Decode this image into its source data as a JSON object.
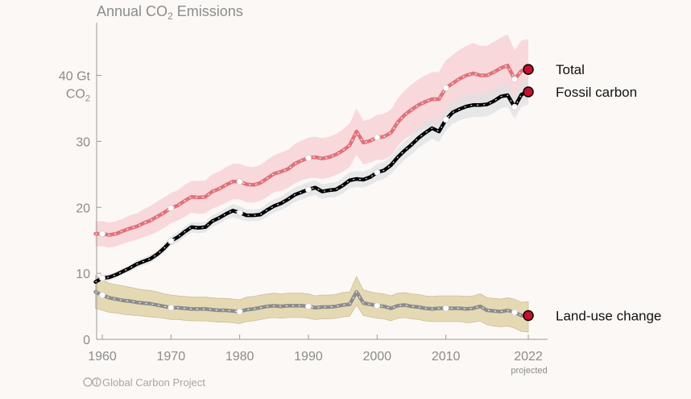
{
  "page": {
    "title": "Annual CO2 Emissions",
    "credit": "Global Carbon Project",
    "credit_icon": "creative-commons-icon"
  },
  "chart_data": {
    "type": "line",
    "title": "Annual CO₂ Emissions",
    "title_prefix": "Annual CO",
    "title_subscript": "2",
    "title_suffix": " Emissions",
    "ylabel_line1": "40 Gt",
    "ylabel_line2_prefix": "CO",
    "ylabel_line2_subscript": "2",
    "xlabel": "",
    "xlim": [
      1959,
      2023
    ],
    "ylim": [
      0,
      48
    ],
    "x_ticks": [
      1960,
      1970,
      1980,
      1990,
      2000,
      2010,
      2022
    ],
    "x_tick_labels": [
      "1960",
      "1970",
      "1980",
      "1990",
      "2000",
      "2010",
      "2022"
    ],
    "x_tick_note": "projected",
    "y_ticks": [
      0,
      10,
      20,
      30
    ],
    "y_tick_labels": [
      "0",
      "10",
      "20",
      "30"
    ],
    "years": [
      1959,
      1960,
      1961,
      1962,
      1963,
      1964,
      1965,
      1966,
      1967,
      1968,
      1969,
      1970,
      1971,
      1972,
      1973,
      1974,
      1975,
      1976,
      1977,
      1978,
      1979,
      1980,
      1981,
      1982,
      1983,
      1984,
      1985,
      1986,
      1987,
      1988,
      1989,
      1990,
      1991,
      1992,
      1993,
      1994,
      1995,
      1996,
      1997,
      1998,
      1999,
      2000,
      2001,
      2002,
      2003,
      2004,
      2005,
      2006,
      2007,
      2008,
      2009,
      2010,
      2011,
      2012,
      2013,
      2014,
      2015,
      2016,
      2017,
      2018,
      2019,
      2020,
      2021,
      2022
    ],
    "series": [
      {
        "name": "Total",
        "color": "#e0727c",
        "band_color": "#f7cdd0",
        "endpoint_color": "#c8102e",
        "values": [
          16.0,
          16.0,
          15.8,
          16.0,
          16.4,
          16.8,
          17.1,
          17.6,
          18.0,
          18.6,
          19.2,
          19.9,
          20.3,
          21.0,
          21.6,
          21.5,
          21.6,
          22.4,
          22.8,
          23.4,
          23.9,
          23.9,
          23.5,
          23.4,
          23.7,
          24.4,
          25.1,
          25.4,
          25.8,
          26.6,
          27.1,
          27.5,
          27.6,
          27.4,
          27.6,
          28.0,
          28.6,
          29.4,
          31.5,
          29.8,
          30.1,
          30.6,
          30.7,
          31.3,
          32.9,
          34.0,
          34.8,
          35.5,
          36.0,
          36.4,
          36.4,
          38.1,
          38.8,
          39.5,
          40.0,
          40.3,
          40.0,
          40.0,
          40.5,
          41.1,
          41.5,
          39.4,
          40.7,
          40.9
        ],
        "band_lo": [
          14.1,
          14.1,
          13.9,
          14.1,
          14.5,
          14.8,
          15.1,
          15.5,
          15.8,
          16.3,
          16.9,
          17.6,
          18.0,
          18.6,
          19.2,
          19.0,
          19.1,
          19.8,
          20.2,
          20.7,
          21.2,
          21.2,
          20.8,
          20.7,
          21.0,
          21.6,
          22.3,
          22.5,
          22.9,
          23.6,
          24.1,
          24.4,
          24.5,
          24.3,
          24.5,
          24.9,
          25.4,
          26.1,
          28.0,
          26.5,
          26.8,
          27.2,
          27.2,
          27.8,
          29.3,
          30.3,
          31.0,
          31.6,
          32.0,
          32.3,
          32.3,
          33.9,
          34.5,
          35.1,
          35.5,
          35.7,
          35.5,
          35.5,
          35.9,
          36.5,
          36.8,
          35.0,
          36.1,
          36.3
        ],
        "band_hi": [
          17.9,
          17.9,
          17.7,
          17.9,
          18.3,
          18.8,
          19.1,
          19.7,
          20.2,
          20.9,
          21.5,
          22.2,
          22.6,
          23.4,
          24.0,
          24.0,
          24.1,
          25.0,
          25.4,
          26.1,
          26.6,
          26.6,
          26.2,
          26.1,
          26.4,
          27.2,
          27.9,
          28.3,
          28.7,
          29.6,
          30.1,
          30.6,
          30.7,
          30.5,
          30.7,
          31.1,
          31.8,
          32.7,
          35.0,
          33.1,
          33.4,
          34.0,
          34.2,
          34.8,
          36.5,
          37.7,
          38.6,
          39.4,
          40.0,
          40.5,
          40.5,
          42.3,
          43.1,
          43.9,
          44.5,
          44.9,
          44.5,
          44.5,
          45.1,
          45.7,
          46.2,
          43.8,
          45.3,
          45.5
        ]
      },
      {
        "name": "Fossil carbon",
        "color": "#000000",
        "band_color": "#dfe1e4",
        "endpoint_color": "#c8102e",
        "values": [
          8.7,
          9.3,
          9.4,
          9.8,
          10.3,
          10.8,
          11.4,
          11.8,
          12.2,
          12.9,
          13.8,
          14.9,
          15.5,
          16.3,
          17.0,
          16.9,
          17.0,
          17.9,
          18.4,
          19.0,
          19.5,
          19.2,
          18.8,
          18.8,
          18.9,
          19.6,
          20.2,
          20.6,
          21.2,
          21.9,
          22.3,
          22.7,
          23.0,
          22.4,
          22.6,
          22.7,
          23.3,
          24.1,
          24.3,
          24.2,
          24.6,
          25.3,
          25.6,
          26.4,
          27.6,
          28.6,
          29.5,
          30.5,
          31.3,
          32.0,
          31.5,
          33.3,
          34.4,
          34.9,
          35.3,
          35.5,
          35.5,
          35.6,
          36.1,
          36.8,
          37.0,
          35.2,
          37.1,
          37.5
        ],
        "band_lo": [
          8.3,
          8.8,
          8.9,
          9.3,
          9.8,
          10.3,
          10.8,
          11.2,
          11.6,
          12.3,
          13.1,
          14.2,
          14.7,
          15.5,
          16.2,
          16.1,
          16.2,
          17.0,
          17.5,
          18.1,
          18.5,
          18.2,
          17.9,
          17.9,
          18.0,
          18.6,
          19.2,
          19.6,
          20.1,
          20.8,
          21.2,
          21.6,
          21.9,
          21.3,
          21.5,
          21.6,
          22.1,
          22.9,
          23.1,
          23.0,
          23.4,
          24.0,
          24.3,
          25.1,
          26.2,
          27.2,
          28.0,
          29.0,
          29.7,
          30.4,
          29.9,
          31.6,
          32.7,
          33.2,
          33.5,
          33.7,
          33.7,
          33.8,
          34.3,
          35.0,
          35.2,
          33.4,
          35.2,
          35.6
        ],
        "band_hi": [
          9.1,
          9.8,
          9.9,
          10.3,
          10.8,
          11.3,
          12.0,
          12.4,
          12.8,
          13.5,
          14.5,
          15.6,
          16.3,
          17.1,
          17.8,
          17.7,
          17.8,
          18.8,
          19.3,
          19.9,
          20.5,
          20.2,
          19.7,
          19.7,
          19.8,
          20.6,
          21.2,
          21.6,
          22.3,
          23.0,
          23.4,
          23.8,
          24.1,
          23.5,
          23.7,
          23.8,
          24.5,
          25.3,
          25.5,
          25.4,
          25.8,
          26.6,
          26.9,
          27.7,
          29.0,
          30.0,
          31.0,
          32.0,
          32.9,
          33.6,
          33.1,
          35.0,
          36.1,
          36.6,
          37.1,
          37.3,
          37.3,
          37.4,
          37.9,
          38.6,
          38.8,
          37.0,
          39.0,
          39.4
        ]
      },
      {
        "name": "Land-use change",
        "color": "#8c8c8c",
        "band_color": "#e3d6ae",
        "endpoint_color": "#c8102e",
        "values": [
          7.2,
          6.7,
          6.3,
          6.1,
          5.9,
          5.8,
          5.6,
          5.5,
          5.4,
          5.2,
          5.0,
          4.8,
          4.8,
          4.7,
          4.6,
          4.6,
          4.6,
          4.5,
          4.4,
          4.4,
          4.3,
          4.2,
          4.5,
          4.6,
          4.8,
          5.0,
          5.1,
          5.0,
          5.1,
          5.1,
          5.1,
          5.0,
          4.8,
          4.9,
          4.9,
          5.0,
          5.2,
          5.3,
          7.2,
          5.5,
          5.3,
          5.1,
          5.0,
          4.7,
          5.1,
          5.2,
          5.0,
          4.9,
          4.7,
          4.6,
          4.7,
          4.7,
          4.7,
          4.7,
          4.6,
          4.7,
          5.0,
          4.4,
          4.3,
          4.2,
          4.4,
          4.1,
          3.6,
          3.6
        ],
        "band_lo": [
          4.7,
          4.4,
          4.1,
          4.0,
          3.8,
          3.7,
          3.6,
          3.5,
          3.4,
          3.3,
          3.2,
          3.0,
          3.0,
          2.9,
          2.8,
          2.8,
          2.8,
          2.7,
          2.6,
          2.6,
          2.5,
          2.4,
          2.7,
          2.8,
          3.0,
          3.2,
          3.3,
          3.2,
          3.3,
          3.3,
          3.3,
          3.2,
          3.0,
          3.1,
          3.1,
          3.2,
          3.4,
          3.5,
          5.2,
          3.6,
          3.4,
          3.2,
          3.1,
          2.8,
          3.2,
          3.3,
          3.1,
          3.0,
          2.8,
          2.7,
          2.7,
          2.7,
          2.7,
          2.7,
          2.5,
          2.6,
          2.8,
          2.2,
          2.0,
          1.9,
          2.0,
          1.7,
          1.2,
          1.1
        ],
        "band_hi": [
          9.7,
          9.0,
          8.5,
          8.3,
          8.1,
          7.9,
          7.7,
          7.5,
          7.4,
          7.2,
          6.9,
          6.7,
          6.6,
          6.5,
          6.4,
          6.4,
          6.4,
          6.3,
          6.2,
          6.2,
          6.1,
          6.0,
          6.4,
          6.5,
          6.7,
          6.9,
          7.0,
          6.9,
          7.0,
          7.0,
          7.0,
          6.9,
          6.6,
          6.7,
          6.7,
          6.8,
          7.1,
          7.2,
          9.5,
          7.5,
          7.2,
          7.0,
          6.9,
          6.6,
          7.0,
          7.1,
          6.9,
          6.8,
          6.6,
          6.5,
          6.6,
          6.6,
          6.6,
          6.6,
          6.5,
          6.6,
          6.9,
          6.3,
          6.2,
          6.1,
          6.3,
          6.1,
          5.6,
          5.7
        ]
      }
    ],
    "highlight_markers": [
      {
        "series": 0,
        "years": [
          1960,
          1970,
          1980,
          1990,
          2000,
          2010,
          2020
        ]
      },
      {
        "series": 1,
        "years": [
          1960,
          1970,
          1980,
          1990,
          2000,
          2010,
          2020
        ]
      },
      {
        "series": 2,
        "years": [
          1960,
          1970,
          1980,
          1990,
          2000,
          2010,
          2020
        ]
      }
    ]
  }
}
